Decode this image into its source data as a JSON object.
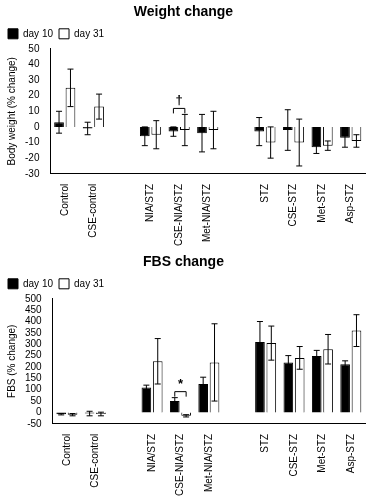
{
  "chart_data": [
    {
      "type": "bar",
      "title": "Weight change",
      "y_label": "Body weight (% change)",
      "categories": [
        "Control",
        "CSE-control",
        null,
        "NIA/STZ",
        "CSE-NIA/STZ",
        "Met-NIA/STZ",
        null,
        "STZ",
        "CSE-STZ",
        "Met-STZ",
        "Asp-STZ"
      ],
      "series": [
        {
          "name": "day 10",
          "color": "#000000",
          "values": [
            3,
            -1,
            null,
            -6,
            -3,
            -4,
            null,
            -3,
            -2,
            -13,
            -7
          ],
          "errors": [
            7,
            4,
            null,
            6,
            3,
            12,
            null,
            9,
            13,
            4,
            6
          ]
        },
        {
          "name": "day 31",
          "color": "#ffffff",
          "values": [
            25,
            13,
            null,
            -5,
            -2,
            -2,
            null,
            -10,
            -10,
            -12,
            -9
          ],
          "errors": [
            12,
            8,
            null,
            9,
            10,
            12,
            null,
            10,
            15,
            3,
            4
          ]
        }
      ],
      "ylim": [
        -30,
        50
      ],
      "yticks": [
        -30,
        -20,
        -10,
        0,
        10,
        20,
        30,
        40,
        50
      ],
      "grid": false,
      "legend": "top-left",
      "annotations": [
        {
          "text": "†",
          "category": "CSE-NIA/STZ"
        }
      ]
    },
    {
      "type": "bar",
      "title": "FBS change",
      "y_label": "FBS (% change)",
      "categories": [
        "Control",
        "CSE-control",
        null,
        "NIA/STZ",
        "CSE-NIA/STZ",
        "Met-NIA/STZ",
        null,
        "STZ",
        "CSE-STZ",
        "Met-STZ",
        "Asp-STZ"
      ],
      "series": [
        {
          "name": "day 10",
          "color": "#000000",
          "values": [
            -8,
            -5,
            null,
            110,
            50,
            125,
            null,
            310,
            220,
            248,
            212
          ],
          "errors": [
            3,
            10,
            null,
            10,
            15,
            30,
            null,
            90,
            30,
            25,
            15
          ]
        },
        {
          "name": "day 31",
          "color": "#ffffff",
          "values": [
            -10,
            -7,
            null,
            225,
            -15,
            220,
            null,
            305,
            240,
            278,
            360
          ],
          "errors": [
            5,
            8,
            null,
            100,
            5,
            170,
            null,
            75,
            50,
            65,
            70
          ]
        }
      ],
      "ylim": [
        -50,
        500
      ],
      "yticks": [
        -50,
        0,
        50,
        100,
        150,
        200,
        250,
        300,
        350,
        400,
        450,
        500
      ],
      "grid": false,
      "legend": "top-left",
      "annotations": [
        {
          "text": "*",
          "category": "CSE-NIA/STZ"
        }
      ]
    }
  ]
}
